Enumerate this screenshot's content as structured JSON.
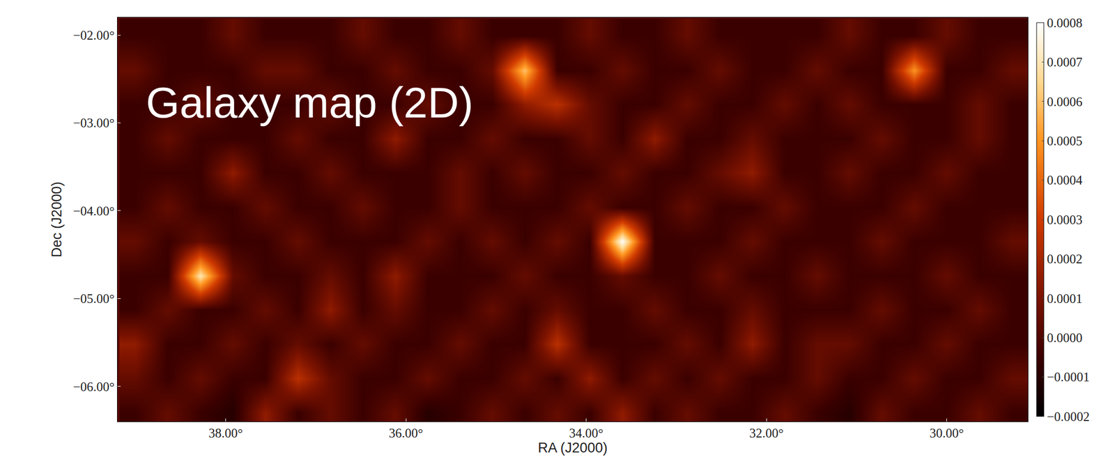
{
  "chart_data": {
    "type": "heatmap",
    "annotation": "Galaxy map (2D)",
    "x_label": "RA (J2000)",
    "y_label": "Dec (J2000)",
    "xlim": [
      39.2,
      29.1
    ],
    "ylim": [
      -6.4,
      -1.8
    ],
    "xticks": [
      {
        "value": 38,
        "label": "38.00°"
      },
      {
        "value": 36,
        "label": "36.00°"
      },
      {
        "value": 34,
        "label": "34.00°"
      },
      {
        "value": 32,
        "label": "32.00°"
      },
      {
        "value": 30,
        "label": "30.00°"
      }
    ],
    "yticks": [
      {
        "value": -2,
        "label": "−02.00°"
      },
      {
        "value": -3,
        "label": "−03.00°"
      },
      {
        "value": -4,
        "label": "−04.00°"
      },
      {
        "value": -5,
        "label": "−05.00°"
      },
      {
        "value": -6,
        "label": "−06.00°"
      }
    ],
    "colorbar_range": [
      -0.0002,
      0.0008
    ],
    "colorbar_ticks": [
      0.0008,
      0.0007,
      0.0006,
      0.0005,
      0.0004,
      0.0003,
      0.0002,
      0.0001,
      {
        "value": 0,
        "label": "0.0000"
      },
      {
        "value": -0.0001,
        "label": "−0.0001"
      },
      {
        "value": -0.0002,
        "label": "−0.0002"
      }
    ],
    "x": [
      39.0,
      38.64,
      38.28,
      37.92,
      37.56,
      37.2,
      36.84,
      36.48,
      36.12,
      35.76,
      35.4,
      35.04,
      34.68,
      34.32,
      33.96,
      33.6,
      33.24,
      32.88,
      32.52,
      32.16,
      31.8,
      31.44,
      31.08,
      30.72,
      30.36,
      30.0,
      29.64,
      29.28
    ],
    "y": [
      -6.3,
      -5.91,
      -5.52,
      -5.13,
      -4.74,
      -4.35,
      -3.96,
      -3.57,
      -3.18,
      -2.79,
      -2.4,
      -2.01
    ],
    "cells": [
      [
        -5e-05,
        5e-05,
        -5e-05,
        -0.0001,
        0.00015,
        -5e-05,
        5e-05,
        -5e-05,
        5e-05,
        -0.0001,
        -5e-05,
        5e-05,
        -5e-05,
        5e-05,
        -5e-05,
        0.00015,
        -5e-05,
        5e-05,
        -5e-05,
        -5e-05,
        5e-05,
        -5e-05,
        -0.0001,
        5e-05,
        -5e-05,
        -5e-05,
        5e-05,
        -5e-05
      ],
      [
        5e-05,
        -5e-05,
        5e-05,
        -5e-05,
        -5e-05,
        0.00025,
        5e-05,
        -5e-05,
        -5e-05,
        5e-05,
        -5e-05,
        -5e-05,
        5e-05,
        -5e-05,
        0.00015,
        -5e-05,
        5e-05,
        -5e-05,
        5e-05,
        -5e-05,
        -5e-05,
        5e-05,
        -5e-05,
        -5e-05,
        5e-05,
        -5e-05,
        -5e-05,
        5e-05
      ],
      [
        0.00015,
        -5e-05,
        -5e-05,
        5e-05,
        -5e-05,
        5e-05,
        -5e-05,
        5e-05,
        -5e-05,
        -5e-05,
        5e-05,
        -5e-05,
        -5e-05,
        0.00025,
        -5e-05,
        -5e-05,
        -5e-05,
        5e-05,
        -5e-05,
        0.00015,
        -5e-05,
        5e-05,
        5e-05,
        -5e-05,
        -5e-05,
        5e-05,
        -5e-05,
        -5e-05
      ],
      [
        -5e-05,
        5e-05,
        -5e-05,
        -5e-05,
        5e-05,
        -5e-05,
        0.00015,
        -5e-05,
        5e-05,
        -5e-05,
        -5e-05,
        5e-05,
        -5e-05,
        5e-05,
        -5e-05,
        -5e-05,
        5e-05,
        -5e-05,
        -5e-05,
        5e-05,
        -5e-05,
        -5e-05,
        -5e-05,
        5e-05,
        -5e-05,
        -5e-05,
        5e-05,
        -5e-05
      ],
      [
        -5e-05,
        -5e-05,
        0.0007,
        5e-05,
        -5e-05,
        -5e-05,
        5e-05,
        -5e-05,
        0.00015,
        -5e-05,
        -5e-05,
        -5e-05,
        5e-05,
        -5e-05,
        -5e-05,
        5e-05,
        -5e-05,
        -5e-05,
        5e-05,
        -5e-05,
        -5e-05,
        5e-05,
        -5e-05,
        -5e-05,
        -5e-05,
        5e-05,
        -5e-05,
        -5e-05
      ],
      [
        5e-05,
        -5e-05,
        5e-05,
        -5e-05,
        -5e-05,
        5e-05,
        -5e-05,
        -5e-05,
        -5e-05,
        5e-05,
        -5e-05,
        5e-05,
        -5e-05,
        5e-05,
        -5e-05,
        0.0008,
        -5e-05,
        -5e-05,
        -5e-05,
        5e-05,
        -5e-05,
        -5e-05,
        -5e-05,
        5e-05,
        -5e-05,
        -5e-05,
        -5e-05,
        5e-05
      ],
      [
        -5e-05,
        5e-05,
        -5e-05,
        -5e-05,
        5e-05,
        -5e-05,
        -5e-05,
        5e-05,
        -5e-05,
        -5e-05,
        5e-05,
        -5e-05,
        -5e-05,
        -5e-05,
        5e-05,
        -5e-05,
        -5e-05,
        5e-05,
        -5e-05,
        -5e-05,
        5e-05,
        -5e-05,
        -5e-05,
        -5e-05,
        5e-05,
        -5e-05,
        -5e-05,
        -5e-05
      ],
      [
        -5e-05,
        -5e-05,
        -5e-05,
        0.00015,
        -5e-05,
        -5e-05,
        5e-05,
        -5e-05,
        -5e-05,
        -5e-05,
        5e-05,
        -5e-05,
        5e-05,
        -5e-05,
        -5e-05,
        5e-05,
        -5e-05,
        -5e-05,
        5e-05,
        0.00015,
        -5e-05,
        -5e-05,
        5e-05,
        -5e-05,
        -5e-05,
        5e-05,
        -5e-05,
        -5e-05
      ],
      [
        -5e-05,
        5e-05,
        -5e-05,
        -5e-05,
        -5e-05,
        5e-05,
        -5e-05,
        -5e-05,
        0.00015,
        -5e-05,
        -5e-05,
        5e-05,
        -5e-05,
        -5e-05,
        5e-05,
        -5e-05,
        0.00015,
        -5e-05,
        -5e-05,
        5e-05,
        -5e-05,
        -5e-05,
        -5e-05,
        5e-05,
        -5e-05,
        -5e-05,
        5e-05,
        -5e-05
      ],
      [
        -5e-05,
        -5e-05,
        5e-05,
        -5e-05,
        -5e-05,
        -5e-05,
        5e-05,
        -5e-05,
        -5e-05,
        5e-05,
        -5e-05,
        -5e-05,
        0.00015,
        0.00025,
        5e-05,
        -5e-05,
        -5e-05,
        5e-05,
        -5e-05,
        -5e-05,
        5e-05,
        -5e-05,
        5e-05,
        -5e-05,
        -5e-05,
        -5e-05,
        5e-05,
        -5e-05
      ],
      [
        5e-05,
        -5e-05,
        -5e-05,
        -5e-05,
        5e-05,
        5e-05,
        -5e-05,
        -5e-05,
        5e-05,
        -5e-05,
        -5e-05,
        5e-05,
        0.0006,
        -5e-05,
        -5e-05,
        5e-05,
        -5e-05,
        -5e-05,
        5e-05,
        -5e-05,
        -5e-05,
        5e-05,
        -5e-05,
        -5e-05,
        0.0005,
        -5e-05,
        -5e-05,
        5e-05
      ],
      [
        -5e-05,
        -5e-05,
        -5e-05,
        5e-05,
        -5e-05,
        -5e-05,
        -5e-05,
        5e-05,
        -5e-05,
        -5e-05,
        5e-05,
        -5e-05,
        -5e-05,
        -5e-05,
        5e-05,
        -5e-05,
        -5e-05,
        5e-05,
        -5e-05,
        -5e-05,
        -5e-05,
        -5e-05,
        5e-05,
        -5e-05,
        -5e-05,
        5e-05,
        -5e-05,
        -5e-05
      ]
    ]
  }
}
